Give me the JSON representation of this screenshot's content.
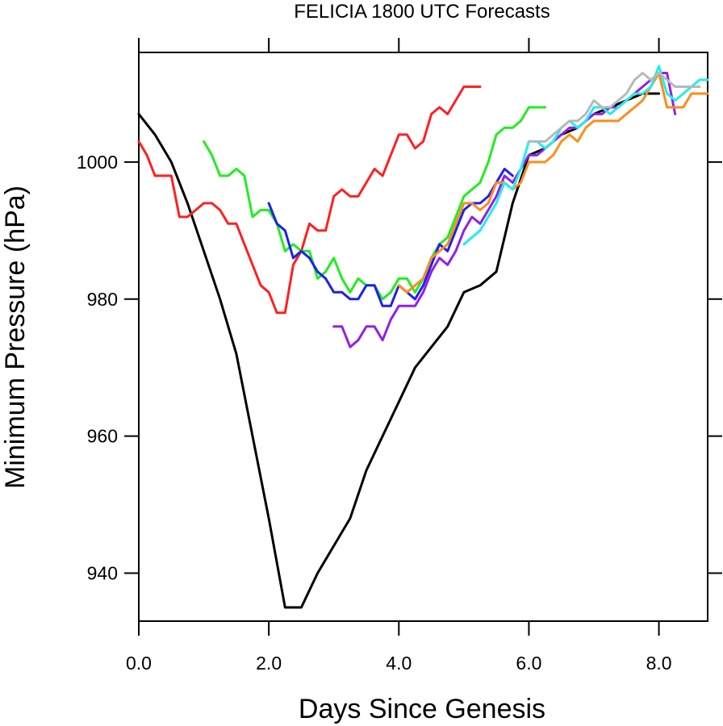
{
  "chart_data": {
    "type": "line",
    "title": "FELICIA 1800 UTC Forecasts",
    "xlabel": "Days Since Genesis",
    "ylabel": "Minimum Pressure (hPa)",
    "xlim": [
      0,
      8.75
    ],
    "ylim": [
      933,
      1016
    ],
    "x_ticks": [
      0,
      2,
      4,
      6,
      8
    ],
    "x_tick_labels": [
      "0.0",
      "2.0",
      "4.0",
      "6.0",
      "8.0"
    ],
    "y_ticks": [
      940,
      960,
      980,
      1000
    ],
    "y_tick_labels": [
      "940",
      "960",
      "980",
      "1000"
    ],
    "grid": false,
    "series": [
      {
        "color": "#000000",
        "x": [
          0,
          0.25,
          0.5,
          0.75,
          1.0,
          1.25,
          1.5,
          1.75,
          2.0,
          2.25,
          2.5,
          2.75,
          3.0,
          3.25,
          3.5,
          3.75,
          4.0,
          4.25,
          4.5,
          4.75,
          5.0,
          5.25,
          5.5,
          5.75,
          6.0,
          6.25,
          6.5,
          6.75,
          7.0,
          7.25,
          7.5,
          7.75,
          8.0
        ],
        "y": [
          1007,
          1004,
          1000,
          994,
          987,
          980,
          972,
          960,
          948,
          935,
          935,
          940,
          944,
          948,
          955,
          960,
          965,
          970,
          973,
          976,
          981,
          982,
          984,
          994,
          1001,
          1002,
          1004,
          1005,
          1007,
          1008,
          1009,
          1010,
          1010
        ]
      },
      {
        "color": "#ff2020",
        "x": [
          0,
          0.125,
          0.25,
          0.375,
          0.5,
          0.625,
          0.75,
          0.875,
          1.0,
          1.125,
          1.25,
          1.375,
          1.5,
          1.625,
          1.75,
          1.875,
          2.0,
          2.125,
          2.25,
          2.375,
          2.5,
          2.625,
          2.75,
          2.875,
          3.0,
          3.125,
          3.25,
          3.375,
          3.5,
          3.625,
          3.75,
          3.875,
          4.0,
          4.125,
          4.25,
          4.375,
          4.5,
          4.625,
          4.75,
          4.875,
          5.0,
          5.125,
          5.25
        ],
        "y": [
          1003,
          1001,
          998,
          998,
          998,
          992,
          992,
          993,
          994,
          994,
          993,
          991,
          991,
          988,
          985,
          982,
          981,
          978,
          978,
          985,
          987,
          991,
          990,
          990,
          995,
          996,
          995,
          995,
          997,
          999,
          998,
          1001,
          1004,
          1004,
          1002,
          1003,
          1007,
          1008,
          1007,
          1009,
          1011,
          1011,
          1011
        ]
      },
      {
        "color": "#20ee20",
        "x": [
          1.0,
          1.125,
          1.25,
          1.375,
          1.5,
          1.625,
          1.75,
          1.875,
          2.0,
          2.125,
          2.25,
          2.375,
          2.5,
          2.625,
          2.75,
          2.875,
          3.0,
          3.125,
          3.25,
          3.375,
          3.5,
          3.625,
          3.75,
          3.875,
          4.0,
          4.125,
          4.25,
          4.375,
          4.5,
          4.625,
          4.75,
          4.875,
          5.0,
          5.125,
          5.25,
          5.375,
          5.5,
          5.625,
          5.75,
          5.875,
          6.0,
          6.125,
          6.25
        ],
        "y": [
          1003,
          1001,
          998,
          998,
          999,
          998,
          992,
          993,
          993,
          991,
          987,
          988,
          987,
          987,
          983,
          984,
          986,
          983,
          981,
          983,
          982,
          982,
          980,
          981,
          983,
          983,
          981,
          983,
          986,
          988,
          989,
          992,
          995,
          996,
          997,
          1000,
          1004,
          1005,
          1005,
          1006,
          1008,
          1008,
          1008
        ]
      },
      {
        "color": "#2020ee",
        "x": [
          2.0,
          2.125,
          2.25,
          2.375,
          2.5,
          2.625,
          2.75,
          2.875,
          3.0,
          3.125,
          3.25,
          3.375,
          3.5,
          3.625,
          3.75,
          3.875,
          4.0,
          4.125,
          4.25,
          4.375,
          4.5,
          4.625,
          4.75,
          4.875,
          5.0,
          5.125,
          5.25,
          5.375,
          5.5,
          5.625,
          5.75
        ],
        "y": [
          994,
          991,
          990,
          986,
          987,
          986,
          984,
          983,
          981,
          981,
          980,
          980,
          982,
          982,
          979,
          979,
          982,
          981,
          980,
          982,
          985,
          988,
          987,
          990,
          993,
          994,
          994,
          995,
          997,
          999,
          998
        ]
      },
      {
        "color": "#9020ee",
        "x": [
          3.0,
          3.125,
          3.25,
          3.375,
          3.5,
          3.625,
          3.75,
          3.875,
          4.0,
          4.125,
          4.25,
          4.375,
          4.5,
          4.625,
          4.75,
          4.875,
          5.0,
          5.125,
          5.25,
          5.375,
          5.5,
          5.625,
          5.75,
          5.875,
          6.0,
          6.125,
          6.25,
          6.375,
          6.5,
          6.625,
          6.75,
          6.875,
          7.0,
          7.125,
          7.25,
          7.375,
          7.5,
          7.625,
          7.75,
          7.875,
          8.0,
          8.125,
          8.25
        ],
        "y": [
          976,
          976,
          973,
          974,
          976,
          976,
          974,
          977,
          979,
          979,
          979,
          981,
          984,
          986,
          985,
          987,
          990,
          992,
          991,
          993,
          995,
          998,
          997,
          999,
          1001,
          1001,
          1002,
          1003,
          1004,
          1005,
          1005,
          1006,
          1007,
          1007,
          1008,
          1008,
          1009,
          1010,
          1011,
          1012,
          1013,
          1013,
          1007
        ]
      },
      {
        "color": "#ff8c1a",
        "x": [
          4.0,
          4.125,
          4.25,
          4.375,
          4.5,
          4.625,
          4.75,
          4.875,
          5.0,
          5.125,
          5.25,
          5.375,
          5.5,
          5.625,
          5.75,
          5.875,
          6.0,
          6.125,
          6.25,
          6.375,
          6.5,
          6.625,
          6.75,
          6.875,
          7.0,
          7.125,
          7.25,
          7.375,
          7.5,
          7.625,
          7.75,
          7.875,
          8.0,
          8.125,
          8.25,
          8.375,
          8.5,
          8.625,
          8.75
        ],
        "y": [
          982,
          981,
          982,
          983,
          986,
          987,
          988,
          991,
          994,
          994,
          993,
          994,
          997,
          997,
          996,
          997,
          1000,
          1000,
          1000,
          1001,
          1003,
          1004,
          1003,
          1005,
          1006,
          1006,
          1006,
          1006,
          1007,
          1008,
          1009,
          1011,
          1013,
          1008,
          1008,
          1008,
          1010,
          1010,
          1010
        ]
      },
      {
        "color": "#20eeee",
        "x": [
          5.0,
          5.125,
          5.25,
          5.375,
          5.5,
          5.625,
          5.75,
          5.875,
          6.0,
          6.125,
          6.25,
          6.375,
          6.5,
          6.625,
          6.75,
          6.875,
          7.0,
          7.125,
          7.25,
          7.375,
          7.5,
          7.625,
          7.75,
          7.875,
          8.0,
          8.125,
          8.25,
          8.375,
          8.5,
          8.625,
          8.75
        ],
        "y": [
          988,
          989,
          990,
          992,
          994,
          997,
          996,
          999,
          1003,
          1003,
          1002,
          1003,
          1005,
          1006,
          1005,
          1006,
          1008,
          1008,
          1007,
          1008,
          1009,
          1010,
          1010,
          1011,
          1014,
          1010,
          1009,
          1010,
          1011,
          1012,
          1012
        ]
      },
      {
        "color": "#b8b8b8",
        "x": [
          6.0,
          6.125,
          6.25,
          6.375,
          6.5,
          6.625,
          6.75,
          6.875,
          7.0,
          7.125,
          7.25,
          7.375,
          7.5,
          7.625,
          7.75,
          7.875,
          8.0,
          8.125,
          8.25,
          8.375,
          8.5,
          8.625
        ],
        "y": [
          1003,
          1003,
          1003,
          1004,
          1005,
          1006,
          1006,
          1007,
          1009,
          1008,
          1008,
          1009,
          1010,
          1012,
          1013,
          1012,
          1013,
          1012,
          1011,
          1011,
          1011,
          1011
        ]
      }
    ]
  }
}
